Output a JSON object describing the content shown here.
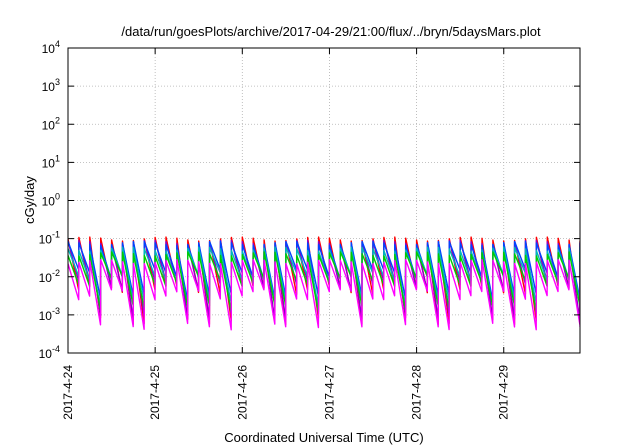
{
  "chart_data": {
    "type": "line",
    "title": "/data/run/goesPlots/archive/2017-04-29/21:00/flux/../bryn/5daysMars.plot",
    "xlabel": "Coordinated Universal Time (UTC)",
    "ylabel": "cGy/day",
    "yscale": "log",
    "ylim": [
      0.0001,
      10000
    ],
    "xlim": [
      "2017-04-24 00:00",
      "2017-04-29 21:00"
    ],
    "grid": true,
    "x_ticks": [
      "2017-4-24",
      "2017-4-25",
      "2017-4-26",
      "2017-4-27",
      "2017-4-28",
      "2017-4-29"
    ],
    "y_ticks": [
      {
        "value": 0.0001,
        "base": "10",
        "exp": "-4"
      },
      {
        "value": 0.001,
        "base": "10",
        "exp": "-3"
      },
      {
        "value": 0.01,
        "base": "10",
        "exp": "-2"
      },
      {
        "value": 0.1,
        "base": "10",
        "exp": "-1"
      },
      {
        "value": 1,
        "base": "10",
        "exp": "0"
      },
      {
        "value": 10,
        "base": "10",
        "exp": "1"
      },
      {
        "value": 100,
        "base": "10",
        "exp": "2"
      },
      {
        "value": 1000,
        "base": "10",
        "exp": "3"
      },
      {
        "value": 10000,
        "base": "10",
        "exp": "4"
      }
    ],
    "sawtooth_period_hours": 3,
    "series": [
      {
        "color": "#ff0000",
        "peak": 0.11,
        "trough": 0.0045,
        "deep_trough": 0.0007
      },
      {
        "color": "#8a00c8",
        "peak": 0.09,
        "trough": 0.006,
        "deep_trough": 0.0009
      },
      {
        "color": "#0044ff",
        "peak": 0.085,
        "trough": 0.012,
        "deep_trough": 0.003
      },
      {
        "color": "#00b8b8",
        "peak": 0.06,
        "trough": 0.01,
        "deep_trough": 0.002
      },
      {
        "color": "#00cc00",
        "peak": 0.045,
        "trough": 0.008,
        "deep_trough": 0.0015
      },
      {
        "color": "#ff00ff",
        "peak": 0.028,
        "trough": 0.0035,
        "deep_trough": 0.0005
      }
    ]
  }
}
